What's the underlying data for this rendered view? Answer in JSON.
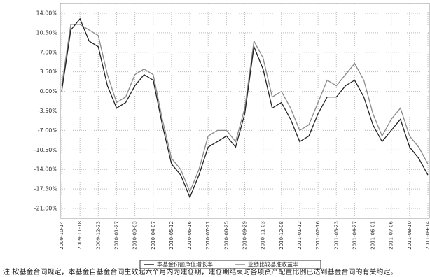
{
  "chart_data": {
    "type": "line",
    "x": [
      "2009-10-14",
      null,
      "2009-11-18",
      null,
      "2009-12-23",
      null,
      "2010-01-27",
      null,
      "2010-03-03",
      null,
      "2010-04-07",
      null,
      "2010-05-12",
      null,
      "2010-06-16",
      null,
      "2010-07-21",
      null,
      "2010-08-25",
      null,
      "2010-09-29",
      null,
      "2010-11-03",
      null,
      "2010-12-08",
      null,
      "2011-01-12",
      null,
      "2011-02-16",
      null,
      "2011-03-23",
      null,
      "2011-04-27",
      null,
      "2011-06-01",
      null,
      "2011-07-06",
      null,
      "2011-08-10",
      null,
      "2011-09-14"
    ],
    "series": [
      {
        "name": "本基金份额净值增长率",
        "color": "#222222",
        "values": [
          0,
          11,
          13,
          9,
          8,
          1,
          -3,
          -2,
          1,
          3,
          2,
          -6,
          -13,
          -15,
          -19,
          -15,
          -10,
          -9,
          -8,
          -10,
          -4,
          8,
          4,
          -3,
          -2,
          -5,
          -9,
          -8,
          -4,
          -1,
          -1,
          1,
          2,
          -1,
          -6,
          -9,
          -7,
          -5,
          -10,
          -12,
          -15
        ]
      },
      {
        "name": "业绩比较基准收益率",
        "color": "#8a8a8a",
        "values": [
          1,
          12,
          12,
          11,
          10,
          3,
          -2,
          -1,
          3,
          4,
          3,
          -5,
          -12,
          -14,
          -18,
          -14,
          -8,
          -7,
          -7,
          -9,
          -3,
          9,
          6,
          -1,
          0,
          -3,
          -7,
          -6,
          -2,
          2,
          1,
          3,
          5,
          2,
          -4,
          -8,
          -5,
          -3,
          -8,
          -10,
          -13
        ]
      }
    ],
    "ylim": [
      -22.75,
      15.75
    ],
    "yticks": [
      {
        "value": 14,
        "label": "14.00%"
      },
      {
        "value": 10.5,
        "label": "10.50%"
      },
      {
        "value": 7,
        "label": "7.00%"
      },
      {
        "value": 3.5,
        "label": "3.50%"
      },
      {
        "value": 0,
        "label": "0.00%"
      },
      {
        "value": -3.5,
        "label": "-3.50%"
      },
      {
        "value": -7,
        "label": "-7.00%"
      },
      {
        "value": -10.5,
        "label": "-10.50%"
      },
      {
        "value": -14,
        "label": "-14.00%"
      },
      {
        "value": -17.5,
        "label": "-17.50%"
      },
      {
        "value": -21,
        "label": "-21.00%"
      }
    ],
    "grid": true,
    "note": "注:按基金合同规定，本基金自基金合同生效起六个月内为建仓期，建仓期结束时各项资产配置比例已达到基金合同的有关约定。"
  }
}
